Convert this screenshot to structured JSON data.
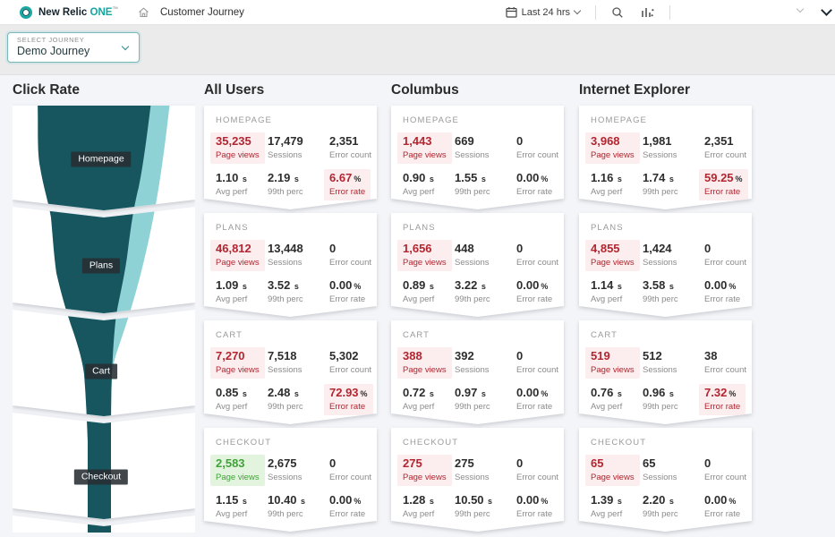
{
  "nav": {
    "brand": {
      "name": "New Relic",
      "product": "ONE",
      "tm": "™"
    },
    "breadcrumb": "Customer Journey",
    "time_label": "Last 24 hrs"
  },
  "journey_select": {
    "label": "SELECT JOURNEY",
    "value": "Demo Journey"
  },
  "funnel": {
    "title": "Click Rate",
    "stages": [
      "Homepage",
      "Plans",
      "Cart",
      "Checkout"
    ]
  },
  "metric_labels": {
    "page_views": "Page views",
    "sessions": "Sessions",
    "error_count": "Error count",
    "avg_perf": "Avg perf",
    "p99": "99th perc",
    "error_rate": "Error rate"
  },
  "units": {
    "seconds": "s",
    "percent": "%"
  },
  "columns": [
    {
      "title": "All Users",
      "cards": [
        {
          "stage": "HOMEPAGE",
          "page_views": "35,235",
          "page_views_status": "bad",
          "sessions": "17,479",
          "error_count": "2,351",
          "avg_perf": "1.10",
          "p99": "2.19",
          "error_rate": "6.67",
          "error_rate_status": "bad"
        },
        {
          "stage": "PLANS",
          "page_views": "46,812",
          "page_views_status": "bad",
          "sessions": "13,448",
          "error_count": "0",
          "avg_perf": "1.09",
          "p99": "3.52",
          "error_rate": "0.00",
          "error_rate_status": "normal"
        },
        {
          "stage": "CART",
          "page_views": "7,270",
          "page_views_status": "bad",
          "sessions": "7,518",
          "error_count": "5,302",
          "avg_perf": "0.85",
          "p99": "2.48",
          "error_rate": "72.93",
          "error_rate_status": "bad"
        },
        {
          "stage": "CHECKOUT",
          "page_views": "2,583",
          "page_views_status": "good",
          "sessions": "2,675",
          "error_count": "0",
          "avg_perf": "1.15",
          "p99": "10.40",
          "error_rate": "0.00",
          "error_rate_status": "normal"
        }
      ]
    },
    {
      "title": "Columbus",
      "cards": [
        {
          "stage": "HOMEPAGE",
          "page_views": "1,443",
          "page_views_status": "bad",
          "sessions": "669",
          "error_count": "0",
          "avg_perf": "0.90",
          "p99": "1.55",
          "error_rate": "0.00",
          "error_rate_status": "normal"
        },
        {
          "stage": "PLANS",
          "page_views": "1,656",
          "page_views_status": "bad",
          "sessions": "448",
          "error_count": "0",
          "avg_perf": "0.89",
          "p99": "3.22",
          "error_rate": "0.00",
          "error_rate_status": "normal"
        },
        {
          "stage": "CART",
          "page_views": "388",
          "page_views_status": "bad",
          "sessions": "392",
          "error_count": "0",
          "avg_perf": "0.72",
          "p99": "0.97",
          "error_rate": "0.00",
          "error_rate_status": "normal"
        },
        {
          "stage": "CHECKOUT",
          "page_views": "275",
          "page_views_status": "bad",
          "sessions": "275",
          "error_count": "0",
          "avg_perf": "1.28",
          "p99": "10.50",
          "error_rate": "0.00",
          "error_rate_status": "normal"
        }
      ]
    },
    {
      "title": "Internet Explorer",
      "cards": [
        {
          "stage": "HOMEPAGE",
          "page_views": "3,968",
          "page_views_status": "bad",
          "sessions": "1,981",
          "error_count": "2,351",
          "avg_perf": "1.16",
          "p99": "1.74",
          "error_rate": "59.25",
          "error_rate_status": "bad"
        },
        {
          "stage": "PLANS",
          "page_views": "4,855",
          "page_views_status": "bad",
          "sessions": "1,424",
          "error_count": "0",
          "avg_perf": "1.14",
          "p99": "3.58",
          "error_rate": "0.00",
          "error_rate_status": "normal"
        },
        {
          "stage": "CART",
          "page_views": "519",
          "page_views_status": "bad",
          "sessions": "512",
          "error_count": "38",
          "avg_perf": "0.76",
          "p99": "0.96",
          "error_rate": "7.32",
          "error_rate_status": "bad"
        },
        {
          "stage": "CHECKOUT",
          "page_views": "65",
          "page_views_status": "bad",
          "sessions": "65",
          "error_count": "0",
          "avg_perf": "1.39",
          "p99": "2.20",
          "error_rate": "0.00",
          "error_rate_status": "normal"
        }
      ]
    }
  ],
  "colors": {
    "funnel_dark": "#17565f",
    "funnel_light": "#8fd2d6",
    "accent_teal": "#14a5a0",
    "bad_text": "#b22631",
    "bad_bg": "#fcedee",
    "good_text": "#41a23a",
    "good_bg": "#e3f4de"
  }
}
